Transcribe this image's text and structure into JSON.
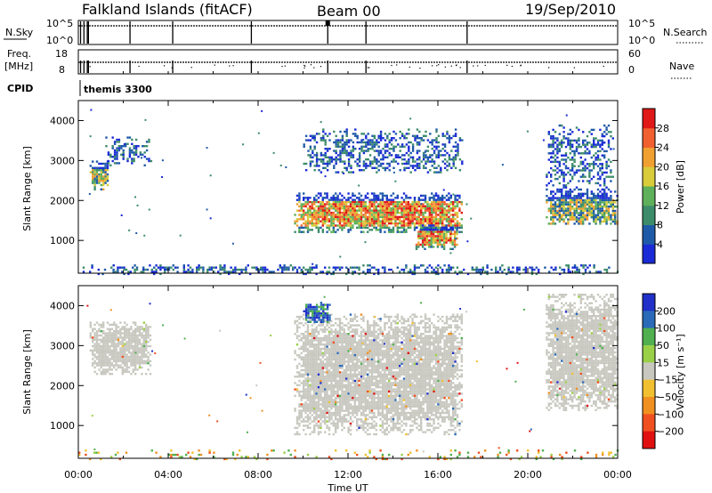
{
  "header": {
    "station": "Falkland Islands (fitACF)",
    "beam": "Beam 00",
    "date": "19/Sep/2010"
  },
  "strips": {
    "nsky_label": "N.Sky",
    "nsky_ticks": [
      "10^5",
      "10^0"
    ],
    "nsearch_label": "N.Search",
    "nsearch_ticks": [
      "10^5",
      "10^0"
    ],
    "freq_label": "Freq.",
    "freq_unit": "[MHz]",
    "freq_ticks": [
      "18",
      "8"
    ],
    "nave_label": "Nave",
    "nave_ticks": [
      "60",
      "0"
    ],
    "cpid_label": "CPID",
    "cpid_value": "themis 3300"
  },
  "chart_data": [
    {
      "type": "heatmap",
      "name": "power",
      "ylabel": "Slant Range [km]",
      "xlim": [
        "00:00",
        "24:00"
      ],
      "ylim": [
        180,
        4500
      ],
      "y_ticks": [
        1000,
        2000,
        3000,
        4000
      ],
      "colorbar": {
        "label": "Power [dB]",
        "ticks": [
          4,
          8,
          12,
          16,
          20,
          24,
          28
        ]
      },
      "colors": [
        "#1a2ad6",
        "#1f5aa8",
        "#3c8c6a",
        "#5fb05a",
        "#d8cc3a",
        "#f0a030",
        "#f06030",
        "#e01818"
      ],
      "regions": [
        {
          "t": [
            0.5,
            1.3
          ],
          "range": [
            2300,
            3000
          ],
          "level": "high"
        },
        {
          "t": [
            1.2,
            3.2
          ],
          "range": [
            2900,
            3600
          ],
          "level": "low"
        },
        {
          "t": [
            9.6,
            17.1
          ],
          "range": [
            1200,
            2200
          ],
          "level": "very-high"
        },
        {
          "t": [
            10.0,
            17.1
          ],
          "range": [
            2700,
            3800
          ],
          "level": "low"
        },
        {
          "t": [
            15.0,
            16.9
          ],
          "range": [
            800,
            1400
          ],
          "level": "very-high"
        },
        {
          "t": [
            20.8,
            24.0
          ],
          "range": [
            1400,
            2300
          ],
          "level": "high"
        },
        {
          "t": [
            20.8,
            23.8
          ],
          "range": [
            2300,
            3900
          ],
          "level": "low"
        },
        {
          "t": [
            0.0,
            24.0
          ],
          "range": [
            180,
            400
          ],
          "level": "low"
        }
      ]
    },
    {
      "type": "heatmap",
      "name": "velocity",
      "xlabel": "Time UT",
      "ylabel": "Slant Range [km]",
      "xlim": [
        "00:00",
        "24:00"
      ],
      "ylim": [
        180,
        4500
      ],
      "x_ticks": [
        "00:00",
        "04:00",
        "08:00",
        "12:00",
        "16:00",
        "20:00",
        "00:00"
      ],
      "y_ticks": [
        1000,
        2000,
        3000,
        4000
      ],
      "colorbar": {
        "label": "Velocity [m s⁻¹]",
        "ticks": [
          "200",
          "100",
          "50",
          "15",
          "−15",
          "−50",
          "−100",
          "−200"
        ]
      },
      "colors": [
        "#2030c8",
        "#2a6ab8",
        "#50b050",
        "#9ad048",
        "#c8c8c0",
        "#f0c030",
        "#f09020",
        "#f05020",
        "#e01010"
      ],
      "regions": [
        {
          "t": [
            0.5,
            3.2
          ],
          "range": [
            2300,
            3600
          ],
          "level": "ground-scatter"
        },
        {
          "t": [
            9.6,
            17.1
          ],
          "range": [
            800,
            3800
          ],
          "level": "ground-scatter"
        },
        {
          "t": [
            20.8,
            24.0
          ],
          "range": [
            1400,
            4300
          ],
          "level": "ground-scatter"
        },
        {
          "t": [
            10.0,
            11.2
          ],
          "range": [
            3600,
            4100
          ],
          "level": "positive"
        },
        {
          "t": [
            0.0,
            24.0
          ],
          "range": [
            180,
            400
          ],
          "level": "mixed"
        }
      ]
    }
  ]
}
